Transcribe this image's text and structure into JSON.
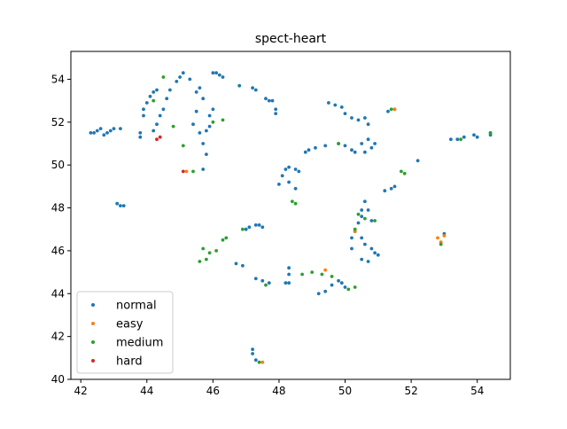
{
  "chart_data": {
    "type": "scatter",
    "title": "spect-heart",
    "xlabel": "",
    "ylabel": "",
    "xlim": [
      41.7,
      55.0
    ],
    "ylim": [
      40.0,
      55.3
    ],
    "xticks": [
      42,
      44,
      46,
      48,
      50,
      52,
      54
    ],
    "yticks": [
      40,
      42,
      44,
      46,
      48,
      50,
      52,
      54
    ],
    "xtick_labels": [
      "42",
      "44",
      "46",
      "48",
      "50",
      "52",
      "54"
    ],
    "ytick_labels": [
      "40",
      "42",
      "44",
      "46",
      "48",
      "50",
      "52",
      "54"
    ],
    "grid": false,
    "legend_position": "lower-left",
    "series": [
      {
        "name": "normal",
        "color": "#1f77b4",
        "points": [
          [
            42.3,
            51.5
          ],
          [
            42.4,
            51.5
          ],
          [
            42.5,
            51.6
          ],
          [
            42.6,
            51.7
          ],
          [
            42.7,
            51.4
          ],
          [
            42.8,
            51.5
          ],
          [
            42.9,
            51.6
          ],
          [
            43.0,
            51.7
          ],
          [
            43.2,
            51.7
          ],
          [
            43.1,
            48.2
          ],
          [
            43.2,
            48.1
          ],
          [
            43.3,
            48.1
          ],
          [
            43.8,
            51.3
          ],
          [
            43.8,
            51.5
          ],
          [
            43.9,
            52.3
          ],
          [
            43.9,
            52.6
          ],
          [
            44.0,
            52.9
          ],
          [
            44.1,
            53.2
          ],
          [
            44.2,
            53.4
          ],
          [
            44.3,
            53.5
          ],
          [
            44.2,
            51.6
          ],
          [
            44.3,
            51.9
          ],
          [
            44.4,
            52.3
          ],
          [
            44.5,
            52.6
          ],
          [
            44.6,
            53.1
          ],
          [
            44.7,
            53.5
          ],
          [
            44.9,
            53.9
          ],
          [
            45.0,
            54.1
          ],
          [
            45.1,
            54.3
          ],
          [
            45.3,
            54.0
          ],
          [
            45.5,
            53.4
          ],
          [
            45.6,
            53.6
          ],
          [
            45.7,
            53.1
          ],
          [
            45.5,
            52.5
          ],
          [
            45.4,
            51.9
          ],
          [
            45.6,
            51.5
          ],
          [
            45.7,
            51.0
          ],
          [
            45.8,
            51.6
          ],
          [
            45.9,
            51.8
          ],
          [
            45.8,
            50.5
          ],
          [
            45.7,
            49.8
          ],
          [
            45.9,
            52.3
          ],
          [
            46.0,
            52.6
          ],
          [
            46.0,
            54.3
          ],
          [
            46.1,
            54.3
          ],
          [
            46.2,
            54.2
          ],
          [
            46.3,
            54.1
          ],
          [
            46.8,
            53.7
          ],
          [
            47.2,
            53.6
          ],
          [
            47.3,
            53.5
          ],
          [
            47.6,
            53.1
          ],
          [
            47.7,
            53.0
          ],
          [
            47.8,
            53.0
          ],
          [
            47.9,
            52.6
          ],
          [
            47.9,
            52.4
          ],
          [
            46.7,
            45.4
          ],
          [
            46.9,
            45.3
          ],
          [
            47.0,
            47.0
          ],
          [
            47.1,
            47.1
          ],
          [
            47.3,
            47.2
          ],
          [
            47.4,
            47.2
          ],
          [
            47.5,
            47.1
          ],
          [
            47.3,
            44.7
          ],
          [
            47.5,
            44.6
          ],
          [
            47.7,
            44.5
          ],
          [
            48.2,
            44.5
          ],
          [
            48.3,
            44.5
          ],
          [
            48.3,
            44.9
          ],
          [
            48.3,
            45.2
          ],
          [
            48.1,
            49.5
          ],
          [
            48.2,
            49.8
          ],
          [
            48.3,
            49.9
          ],
          [
            48.5,
            49.8
          ],
          [
            48.6,
            49.7
          ],
          [
            48.3,
            49.2
          ],
          [
            48.5,
            48.9
          ],
          [
            48.0,
            49.1
          ],
          [
            47.2,
            41.4
          ],
          [
            47.2,
            41.2
          ],
          [
            47.3,
            40.9
          ],
          [
            48.8,
            50.6
          ],
          [
            48.9,
            50.7
          ],
          [
            49.1,
            50.8
          ],
          [
            49.4,
            50.9
          ],
          [
            49.2,
            44.0
          ],
          [
            49.4,
            44.1
          ],
          [
            49.6,
            44.4
          ],
          [
            49.8,
            44.6
          ],
          [
            49.9,
            44.5
          ],
          [
            50.0,
            44.3
          ],
          [
            49.5,
            52.9
          ],
          [
            49.7,
            52.8
          ],
          [
            49.9,
            52.7
          ],
          [
            50.0,
            52.4
          ],
          [
            50.2,
            52.2
          ],
          [
            50.4,
            52.1
          ],
          [
            50.6,
            52.2
          ],
          [
            50.7,
            51.9
          ],
          [
            49.8,
            51.0
          ],
          [
            50.0,
            50.9
          ],
          [
            50.2,
            50.7
          ],
          [
            50.3,
            50.6
          ],
          [
            50.5,
            51.0
          ],
          [
            50.7,
            51.2
          ],
          [
            50.8,
            50.8
          ],
          [
            50.9,
            51.0
          ],
          [
            50.6,
            50.6
          ],
          [
            50.2,
            46.6
          ],
          [
            50.2,
            46.1
          ],
          [
            50.3,
            46.9
          ],
          [
            50.4,
            47.3
          ],
          [
            50.5,
            47.6
          ],
          [
            50.5,
            47.9
          ],
          [
            50.6,
            48.3
          ],
          [
            50.7,
            47.9
          ],
          [
            50.8,
            47.4
          ],
          [
            50.5,
            46.6
          ],
          [
            50.6,
            46.3
          ],
          [
            50.8,
            46.1
          ],
          [
            50.9,
            45.9
          ],
          [
            50.5,
            45.6
          ],
          [
            50.7,
            45.5
          ],
          [
            51.0,
            45.8
          ],
          [
            51.2,
            48.8
          ],
          [
            51.4,
            48.9
          ],
          [
            51.5,
            49.0
          ],
          [
            51.3,
            52.5
          ],
          [
            51.5,
            52.6
          ],
          [
            52.2,
            50.2
          ],
          [
            53.0,
            46.8
          ],
          [
            53.2,
            51.2
          ],
          [
            53.4,
            51.2
          ],
          [
            53.6,
            51.3
          ],
          [
            53.9,
            51.4
          ],
          [
            54.0,
            51.3
          ],
          [
            54.4,
            51.5
          ],
          [
            54.4,
            51.4
          ]
        ]
      },
      {
        "name": "easy",
        "color": "#ff7f0e",
        "points": [
          [
            45.2,
            49.7
          ],
          [
            49.4,
            45.1
          ],
          [
            50.3,
            46.9
          ],
          [
            51.5,
            52.6
          ],
          [
            52.8,
            46.6
          ],
          [
            52.9,
            46.4
          ],
          [
            53.0,
            46.7
          ],
          [
            47.5,
            40.8
          ]
        ]
      },
      {
        "name": "medium",
        "color": "#2ca02c",
        "points": [
          [
            44.2,
            53.0
          ],
          [
            44.5,
            54.1
          ],
          [
            44.8,
            51.8
          ],
          [
            45.1,
            50.9
          ],
          [
            45.4,
            49.7
          ],
          [
            46.0,
            52.0
          ],
          [
            46.3,
            52.1
          ],
          [
            45.6,
            45.5
          ],
          [
            45.8,
            45.6
          ],
          [
            45.9,
            45.9
          ],
          [
            46.1,
            46.0
          ],
          [
            46.3,
            46.5
          ],
          [
            46.4,
            46.6
          ],
          [
            45.7,
            46.1
          ],
          [
            46.9,
            47.0
          ],
          [
            47.6,
            44.4
          ],
          [
            48.4,
            48.3
          ],
          [
            48.5,
            48.2
          ],
          [
            48.7,
            44.9
          ],
          [
            49.0,
            45.0
          ],
          [
            49.3,
            44.9
          ],
          [
            49.6,
            44.8
          ],
          [
            49.8,
            51.0
          ],
          [
            50.1,
            44.2
          ],
          [
            50.3,
            44.3
          ],
          [
            50.4,
            47.7
          ],
          [
            50.6,
            47.5
          ],
          [
            50.9,
            47.4
          ],
          [
            50.3,
            47.0
          ],
          [
            51.7,
            49.7
          ],
          [
            51.8,
            49.6
          ],
          [
            53.5,
            51.2
          ],
          [
            54.4,
            51.5
          ],
          [
            47.4,
            40.8
          ],
          [
            52.9,
            46.3
          ],
          [
            51.4,
            52.6
          ]
        ]
      },
      {
        "name": "hard",
        "color": "#d62728",
        "points": [
          [
            44.4,
            51.3
          ],
          [
            44.3,
            51.2
          ],
          [
            45.1,
            49.7
          ]
        ]
      }
    ]
  }
}
